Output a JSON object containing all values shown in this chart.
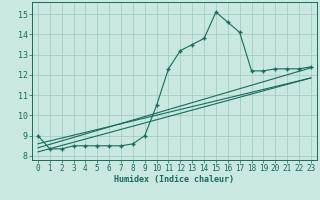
{
  "xlabel": "Humidex (Indice chaleur)",
  "bg_color": "#c8e8e0",
  "grid_color": "#a0c8c0",
  "line_color": "#1a6b5a",
  "xlim": [
    -0.5,
    23.5
  ],
  "ylim": [
    7.8,
    15.6
  ],
  "xticks": [
    0,
    1,
    2,
    3,
    4,
    5,
    6,
    7,
    8,
    9,
    10,
    11,
    12,
    13,
    14,
    15,
    16,
    17,
    18,
    19,
    20,
    21,
    22,
    23
  ],
  "yticks": [
    8,
    9,
    10,
    11,
    12,
    13,
    14,
    15
  ],
  "main_x": [
    0,
    1,
    2,
    3,
    4,
    5,
    6,
    7,
    8,
    9,
    10,
    11,
    12,
    13,
    14,
    15,
    16,
    17,
    18,
    19,
    20,
    21,
    22,
    23
  ],
  "main_y": [
    9.0,
    8.35,
    8.35,
    8.5,
    8.5,
    8.5,
    8.5,
    8.5,
    8.6,
    9.0,
    10.5,
    12.3,
    13.2,
    13.5,
    13.8,
    15.1,
    14.6,
    14.1,
    12.2,
    12.2,
    12.3,
    12.3,
    12.3,
    12.4
  ],
  "line1_x": [
    0,
    23
  ],
  "line1_y": [
    8.4,
    12.35
  ],
  "line2_x": [
    0,
    23
  ],
  "line2_y": [
    8.6,
    11.85
  ],
  "line3_x": [
    0,
    23
  ],
  "line3_y": [
    8.2,
    11.85
  ]
}
